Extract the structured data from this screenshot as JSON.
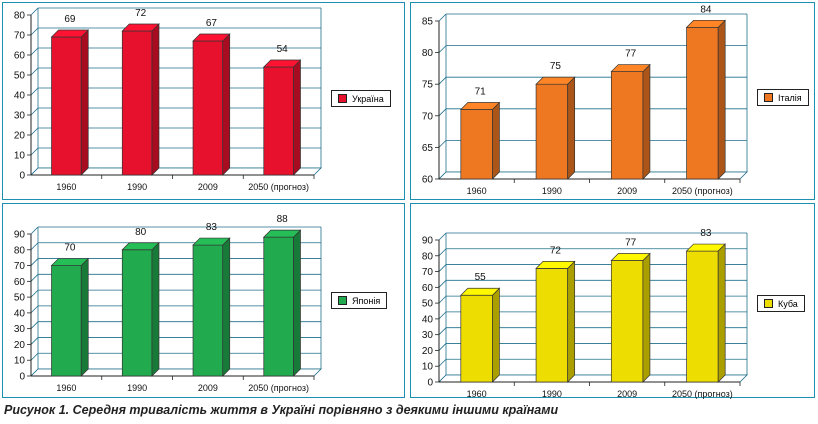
{
  "caption": "Рисунок 1. Середня тривалість життя в Україні порівняно з деякими іншими країнами",
  "chart_data": [
    {
      "type": "bar",
      "categories": [
        "1960",
        "1990",
        "2009",
        "2050 (прогноз)"
      ],
      "series": [
        {
          "name": "Україна",
          "values": [
            69,
            72,
            67,
            54
          ],
          "color": "#e8112d"
        }
      ],
      "value_labels": [
        "69",
        "72",
        "67",
        "54"
      ],
      "ylim": [
        0,
        80
      ],
      "yticks": [
        "0",
        "10",
        "20",
        "30",
        "40",
        "50",
        "60",
        "70",
        "80"
      ],
      "grid": true,
      "legend_position": "right"
    },
    {
      "type": "bar",
      "categories": [
        "1960",
        "1990",
        "2009",
        "2050 (прогноз)"
      ],
      "series": [
        {
          "name": "Італія",
          "values": [
            71,
            75,
            77,
            84
          ],
          "color": "#ee7722"
        }
      ],
      "value_labels": [
        "71",
        "75",
        "77",
        "84"
      ],
      "ylim": [
        60,
        85
      ],
      "yticks": [
        "60",
        "65",
        "70",
        "75",
        "80",
        "85"
      ],
      "grid": true,
      "legend_position": "right"
    },
    {
      "type": "bar",
      "categories": [
        "1960",
        "1990",
        "2009",
        "2050 (прогноз)"
      ],
      "series": [
        {
          "name": "Японія",
          "values": [
            70,
            80,
            83,
            88
          ],
          "color": "#22aa4e"
        }
      ],
      "value_labels": [
        "70",
        "80",
        "83",
        "88"
      ],
      "ylim": [
        0,
        90
      ],
      "yticks": [
        "0",
        "10",
        "20",
        "30",
        "40",
        "50",
        "60",
        "70",
        "80",
        "90"
      ],
      "grid": true,
      "legend_position": "right"
    },
    {
      "type": "bar",
      "categories": [
        "1960",
        "1990",
        "2009",
        "2050 (прогноз)"
      ],
      "series": [
        {
          "name": "Куба",
          "values": [
            55,
            72,
            77,
            83
          ],
          "color": "#eedd00"
        }
      ],
      "value_labels": [
        "55",
        "72",
        "77",
        "83"
      ],
      "ylim": [
        0,
        90
      ],
      "yticks": [
        "0",
        "10",
        "20",
        "30",
        "40",
        "50",
        "60",
        "70",
        "80",
        "90"
      ],
      "grid": true,
      "legend_position": "right"
    }
  ]
}
